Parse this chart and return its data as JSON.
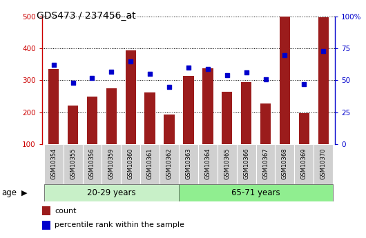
{
  "title": "GDS473 / 237456_at",
  "samples": [
    "GSM10354",
    "GSM10355",
    "GSM10356",
    "GSM10359",
    "GSM10360",
    "GSM10361",
    "GSM10362",
    "GSM10363",
    "GSM10364",
    "GSM10365",
    "GSM10366",
    "GSM10367",
    "GSM10368",
    "GSM10369",
    "GSM10370"
  ],
  "counts": [
    335,
    220,
    248,
    275,
    395,
    262,
    192,
    315,
    338,
    265,
    295,
    228,
    500,
    198,
    498
  ],
  "percentile_ranks": [
    62,
    48,
    52,
    57,
    65,
    55,
    45,
    60,
    59,
    54,
    56,
    51,
    70,
    47,
    73
  ],
  "group1_label": "20-29 years",
  "group2_label": "65-71 years",
  "group1_count": 7,
  "group2_count": 8,
  "ylim_left": [
    100,
    500
  ],
  "ylim_right": [
    0,
    100
  ],
  "yticks_left": [
    100,
    200,
    300,
    400,
    500
  ],
  "yticks_right": [
    0,
    25,
    50,
    75,
    100
  ],
  "bar_color": "#9B1C1C",
  "dot_color": "#0000CC",
  "group1_bg": "#C8F0C8",
  "group2_bg": "#90EE90",
  "legend_count_color": "#9B1C1C",
  "legend_pct_color": "#0000CC",
  "axis_left_color": "#CC0000",
  "axis_right_color": "#0000CC"
}
